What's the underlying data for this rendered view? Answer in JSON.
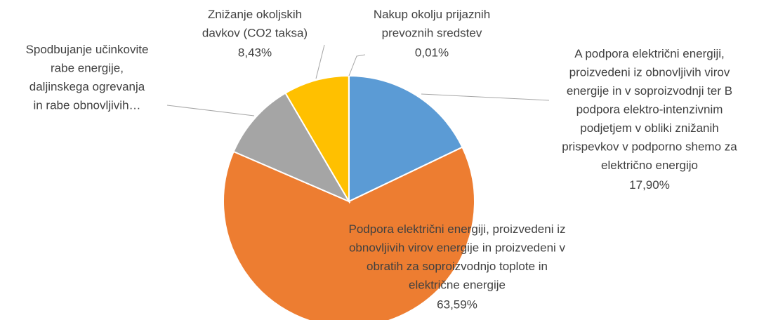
{
  "chart_data": {
    "type": "pie",
    "categories": [
      "A podpora električni energiji,\nproizvedeni iz obnovljivih virov\nenergije in v soproizvodnji ter B\npodpora elektro-intenzivnim\npodjetjem v obliki znižanih\nprispevkov v podporno shemo za\nelektrično energijo",
      "Podpora električni energiji, proizvedeni iz\nobnovljivih virov energije in proizvedeni v\nobratih za soproizvodnjo toplote in\nelektrične energije",
      "Spodbujanje učinkovite\nrabe energije,\ndaljinskega ogrevanja\nin rabe obnovljivih…",
      "Znižanje okoljskih\ndavkov (CO2 taksa)",
      "Nakup okolju prijaznih\nprevoznih sredstev"
    ],
    "values": [
      17.9,
      63.59,
      10.07,
      8.43,
      0.01
    ],
    "value_labels": [
      "17,90%",
      "63,59%",
      null,
      "8,43%",
      "0,01%"
    ],
    "colors": [
      "#5b9bd5",
      "#ed7d31",
      "#a5a5a5",
      "#ffc000",
      "#4472c4"
    ]
  }
}
